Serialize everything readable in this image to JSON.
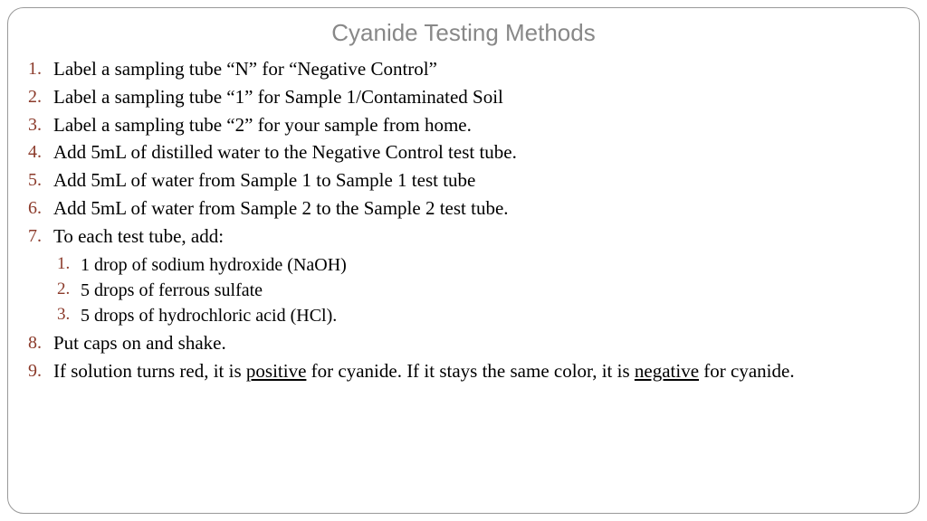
{
  "title": "Cyanide Testing Methods",
  "colors": {
    "title": "#888888",
    "number": "#8b3a2a",
    "text": "#000000",
    "border": "#999999",
    "background": "#ffffff"
  },
  "typography": {
    "title_fontsize": 26,
    "title_family": "sans-serif",
    "body_fontsize": 21,
    "sub_fontsize": 20,
    "body_family": "serif"
  },
  "steps": [
    {
      "text": "Label a sampling tube “N” for “Negative Control”"
    },
    {
      "text": "Label a sampling tube “1” for Sample 1/Contaminated Soil"
    },
    {
      "text": "Label a sampling tube “2” for your sample from home."
    },
    {
      "text": "Add 5mL of distilled water to the Negative Control test tube."
    },
    {
      "text": "Add 5mL of water from Sample 1 to Sample 1 test tube"
    },
    {
      "text": "Add 5mL of water from Sample 2 to the Sample 2 test tube."
    },
    {
      "text": "To each test tube, add:",
      "sub": [
        "1 drop of sodium hydroxide (NaOH)",
        "5 drops of ferrous sulfate",
        "5 drops of hydrochloric acid (HCl)."
      ]
    },
    {
      "text": "Put caps on and shake."
    },
    {
      "segments": [
        {
          "t": "If solution turns red, it is "
        },
        {
          "t": "positive",
          "u": true
        },
        {
          "t": " for cyanide. If it stays the same color, it is "
        },
        {
          "t": "negative",
          "u": true
        },
        {
          "t": " for cyanide."
        }
      ]
    }
  ]
}
